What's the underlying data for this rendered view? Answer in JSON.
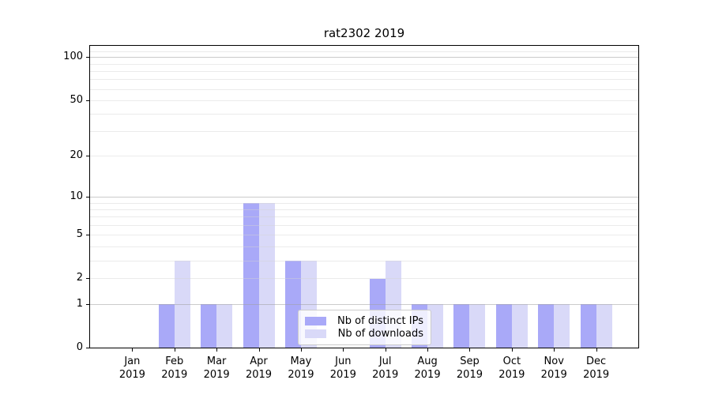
{
  "chart_data": {
    "type": "bar",
    "title": "rat2302 2019",
    "categories": [
      "Jan",
      "Feb",
      "Mar",
      "Apr",
      "May",
      "Jun",
      "Jul",
      "Aug",
      "Sep",
      "Oct",
      "Nov",
      "Dec"
    ],
    "category_year": "2019",
    "series": [
      {
        "name": "Nb of distinct IPs",
        "color": "#a9a9f8",
        "values": [
          0,
          1,
          1,
          9,
          3,
          0,
          2,
          1,
          1,
          1,
          1,
          1
        ]
      },
      {
        "name": "Nb of downloads",
        "color": "#d9d9f8",
        "values": [
          0,
          3,
          1,
          9,
          3,
          0,
          3,
          1,
          1,
          1,
          1,
          1
        ]
      }
    ],
    "yscale": "log1p",
    "ylim": [
      0,
      120
    ],
    "ytick_labels": [
      100,
      50,
      20,
      10,
      5,
      2,
      1,
      0
    ],
    "grid_major": [
      1,
      10,
      100
    ],
    "grid_minor": [
      2,
      3,
      4,
      5,
      6,
      7,
      8,
      9,
      20,
      30,
      40,
      50,
      60,
      70,
      80,
      90,
      110
    ],
    "legend_position": "lower center",
    "colors": {
      "axis": "#000000",
      "background": "#ffffff"
    }
  }
}
